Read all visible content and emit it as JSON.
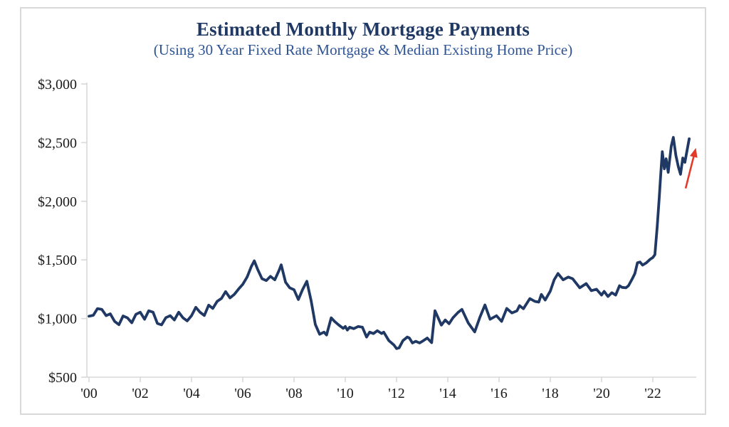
{
  "style": {
    "background": "#FFFFFF",
    "border_color": "#D9D9D9",
    "title_color": "#1F3864",
    "subtitle_color": "#2F5496",
    "line_color": "#1F3864",
    "arrow_color": "#E23B2C",
    "axis_color": "#D9D9D9",
    "tick_label_color": "#1A1A1A"
  },
  "chart_data": {
    "type": "line",
    "title": "Estimated Monthly Mortgage Payments",
    "subtitle": "(Using 30 Year Fixed Rate Mortgage & Median Existing Home Price)",
    "xlabel": "",
    "ylabel": "",
    "xlim": [
      2000,
      2023.5
    ],
    "ylim": [
      500,
      3000
    ],
    "grid": false,
    "legend": false,
    "x_ticks": [
      {
        "year": 2000,
        "label": "'00"
      },
      {
        "year": 2002,
        "label": "'02"
      },
      {
        "year": 2004,
        "label": "'04"
      },
      {
        "year": 2006,
        "label": "'06"
      },
      {
        "year": 2008,
        "label": "'08"
      },
      {
        "year": 2010,
        "label": "'10"
      },
      {
        "year": 2012,
        "label": "'12"
      },
      {
        "year": 2014,
        "label": "'14"
      },
      {
        "year": 2016,
        "label": "'16"
      },
      {
        "year": 2018,
        "label": "'18"
      },
      {
        "year": 2020,
        "label": "'20"
      },
      {
        "year": 2022,
        "label": "'22"
      }
    ],
    "y_ticks": [
      {
        "value": 500,
        "label": "$500"
      },
      {
        "value": 1000,
        "label": "$1,000"
      },
      {
        "value": 1500,
        "label": "$1,500"
      },
      {
        "value": 2000,
        "label": "$2,000"
      },
      {
        "value": 2500,
        "label": "$2,500"
      },
      {
        "value": 3000,
        "label": "$3,000"
      }
    ],
    "series": [
      {
        "name": "Estimated monthly mortgage payment (USD)",
        "color": "#1F3864",
        "points": [
          [
            2000.0,
            1020
          ],
          [
            2000.17,
            1028
          ],
          [
            2000.33,
            1085
          ],
          [
            2000.5,
            1078
          ],
          [
            2000.67,
            1025
          ],
          [
            2000.83,
            1040
          ],
          [
            2001.0,
            976
          ],
          [
            2001.17,
            948
          ],
          [
            2001.33,
            1022
          ],
          [
            2001.5,
            1006
          ],
          [
            2001.67,
            964
          ],
          [
            2001.83,
            1036
          ],
          [
            2002.0,
            1054
          ],
          [
            2002.17,
            994
          ],
          [
            2002.33,
            1066
          ],
          [
            2002.5,
            1054
          ],
          [
            2002.67,
            958
          ],
          [
            2002.83,
            946
          ],
          [
            2003.0,
            1008
          ],
          [
            2003.17,
            1024
          ],
          [
            2003.33,
            988
          ],
          [
            2003.5,
            1054
          ],
          [
            2003.67,
            1006
          ],
          [
            2003.83,
            980
          ],
          [
            2004.0,
            1024
          ],
          [
            2004.17,
            1096
          ],
          [
            2004.33,
            1054
          ],
          [
            2004.5,
            1026
          ],
          [
            2004.67,
            1114
          ],
          [
            2004.83,
            1086
          ],
          [
            2005.0,
            1146
          ],
          [
            2005.17,
            1172
          ],
          [
            2005.33,
            1230
          ],
          [
            2005.5,
            1176
          ],
          [
            2005.67,
            1206
          ],
          [
            2005.83,
            1250
          ],
          [
            2006.0,
            1292
          ],
          [
            2006.17,
            1354
          ],
          [
            2006.33,
            1442
          ],
          [
            2006.45,
            1492
          ],
          [
            2006.58,
            1420
          ],
          [
            2006.75,
            1340
          ],
          [
            2006.92,
            1324
          ],
          [
            2007.08,
            1360
          ],
          [
            2007.25,
            1330
          ],
          [
            2007.42,
            1412
          ],
          [
            2007.5,
            1458
          ],
          [
            2007.67,
            1310
          ],
          [
            2007.83,
            1262
          ],
          [
            2008.0,
            1246
          ],
          [
            2008.17,
            1162
          ],
          [
            2008.33,
            1246
          ],
          [
            2008.5,
            1318
          ],
          [
            2008.67,
            1150
          ],
          [
            2008.83,
            950
          ],
          [
            2009.0,
            866
          ],
          [
            2009.17,
            884
          ],
          [
            2009.27,
            860
          ],
          [
            2009.45,
            1006
          ],
          [
            2009.58,
            976
          ],
          [
            2009.75,
            944
          ],
          [
            2009.92,
            916
          ],
          [
            2010.0,
            932
          ],
          [
            2010.08,
            902
          ],
          [
            2010.17,
            926
          ],
          [
            2010.33,
            914
          ],
          [
            2010.5,
            932
          ],
          [
            2010.67,
            926
          ],
          [
            2010.83,
            842
          ],
          [
            2010.95,
            884
          ],
          [
            2011.1,
            872
          ],
          [
            2011.25,
            896
          ],
          [
            2011.42,
            872
          ],
          [
            2011.5,
            884
          ],
          [
            2011.7,
            812
          ],
          [
            2011.9,
            774
          ],
          [
            2012.0,
            744
          ],
          [
            2012.1,
            750
          ],
          [
            2012.25,
            812
          ],
          [
            2012.42,
            842
          ],
          [
            2012.5,
            834
          ],
          [
            2012.62,
            792
          ],
          [
            2012.75,
            806
          ],
          [
            2012.9,
            792
          ],
          [
            2013.05,
            812
          ],
          [
            2013.2,
            834
          ],
          [
            2013.37,
            794
          ],
          [
            2013.5,
            1066
          ],
          [
            2013.62,
            1008
          ],
          [
            2013.75,
            944
          ],
          [
            2013.9,
            988
          ],
          [
            2014.05,
            956
          ],
          [
            2014.2,
            1006
          ],
          [
            2014.4,
            1052
          ],
          [
            2014.55,
            1078
          ],
          [
            2014.8,
            962
          ],
          [
            2015.05,
            886
          ],
          [
            2015.25,
            1010
          ],
          [
            2015.45,
            1116
          ],
          [
            2015.65,
            994
          ],
          [
            2015.9,
            1024
          ],
          [
            2016.1,
            976
          ],
          [
            2016.3,
            1086
          ],
          [
            2016.5,
            1048
          ],
          [
            2016.7,
            1066
          ],
          [
            2016.8,
            1110
          ],
          [
            2016.95,
            1084
          ],
          [
            2017.2,
            1170
          ],
          [
            2017.4,
            1146
          ],
          [
            2017.55,
            1140
          ],
          [
            2017.65,
            1206
          ],
          [
            2017.8,
            1158
          ],
          [
            2018.0,
            1234
          ],
          [
            2018.15,
            1330
          ],
          [
            2018.3,
            1384
          ],
          [
            2018.5,
            1330
          ],
          [
            2018.7,
            1354
          ],
          [
            2018.87,
            1340
          ],
          [
            2019.15,
            1262
          ],
          [
            2019.4,
            1298
          ],
          [
            2019.6,
            1238
          ],
          [
            2019.8,
            1250
          ],
          [
            2020.0,
            1200
          ],
          [
            2020.1,
            1232
          ],
          [
            2020.25,
            1188
          ],
          [
            2020.4,
            1220
          ],
          [
            2020.55,
            1200
          ],
          [
            2020.7,
            1280
          ],
          [
            2020.8,
            1266
          ],
          [
            2020.95,
            1262
          ],
          [
            2021.05,
            1280
          ],
          [
            2021.2,
            1340
          ],
          [
            2021.3,
            1384
          ],
          [
            2021.4,
            1476
          ],
          [
            2021.5,
            1482
          ],
          [
            2021.6,
            1456
          ],
          [
            2021.75,
            1476
          ],
          [
            2021.9,
            1506
          ],
          [
            2022.0,
            1520
          ],
          [
            2022.08,
            1544
          ],
          [
            2022.17,
            1780
          ],
          [
            2022.25,
            2030
          ],
          [
            2022.3,
            2200
          ],
          [
            2022.37,
            2423
          ],
          [
            2022.45,
            2277
          ],
          [
            2022.52,
            2362
          ],
          [
            2022.6,
            2247
          ],
          [
            2022.72,
            2470
          ],
          [
            2022.8,
            2545
          ],
          [
            2022.9,
            2390
          ],
          [
            2023.0,
            2290
          ],
          [
            2023.08,
            2230
          ],
          [
            2023.17,
            2369
          ],
          [
            2023.25,
            2332
          ],
          [
            2023.42,
            2533
          ]
        ]
      }
    ],
    "annotations": [
      {
        "type": "arrow",
        "color": "#E23B2C",
        "from": {
          "year": 2023.28,
          "value": 2110
        },
        "to": {
          "year": 2023.68,
          "value": 2455
        }
      }
    ]
  }
}
